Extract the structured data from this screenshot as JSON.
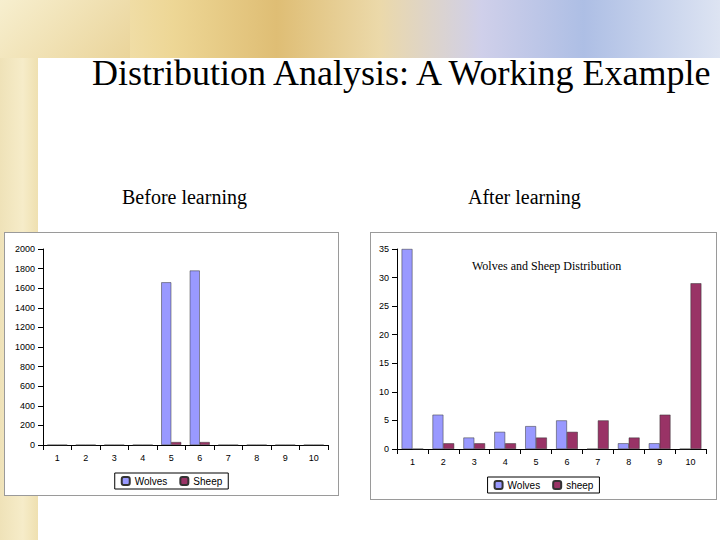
{
  "title": "Distribution Analysis: A Working Example",
  "chart_data": [
    {
      "type": "bar",
      "title": "Before learning",
      "categories": [
        "1",
        "2",
        "3",
        "4",
        "5",
        "6",
        "7",
        "8",
        "9",
        "10"
      ],
      "series": [
        {
          "name": "Wolves",
          "color": "#9999ff",
          "values": [
            0,
            0,
            0,
            0,
            1660,
            1780,
            0,
            0,
            0,
            0
          ]
        },
        {
          "name": "Sheep",
          "color": "#993366",
          "values": [
            0,
            0,
            0,
            0,
            30,
            30,
            0,
            0,
            0,
            0
          ]
        }
      ],
      "ylim": [
        0,
        2000
      ],
      "yticks": [
        0,
        200,
        400,
        600,
        800,
        1000,
        1200,
        1400,
        1600,
        1800,
        2000
      ],
      "grid": false,
      "legend": "bottom"
    },
    {
      "type": "bar",
      "title": "After learning",
      "subtitle": "Wolves and Sheep Distribution",
      "categories": [
        "1",
        "2",
        "3",
        "4",
        "5",
        "6",
        "7",
        "8",
        "9",
        "10"
      ],
      "series": [
        {
          "name": "Wolves",
          "color": "#9999ff",
          "values": [
            35,
            6,
            2,
            3,
            4,
            5,
            0,
            1,
            1,
            0
          ]
        },
        {
          "name": "sheep",
          "color": "#993366",
          "values": [
            0,
            1,
            1,
            1,
            2,
            3,
            5,
            2,
            6,
            29
          ]
        }
      ],
      "ylim": [
        0,
        35
      ],
      "yticks": [
        0,
        5,
        10,
        15,
        20,
        25,
        30,
        35
      ],
      "grid": false,
      "legend": "bottom"
    }
  ]
}
